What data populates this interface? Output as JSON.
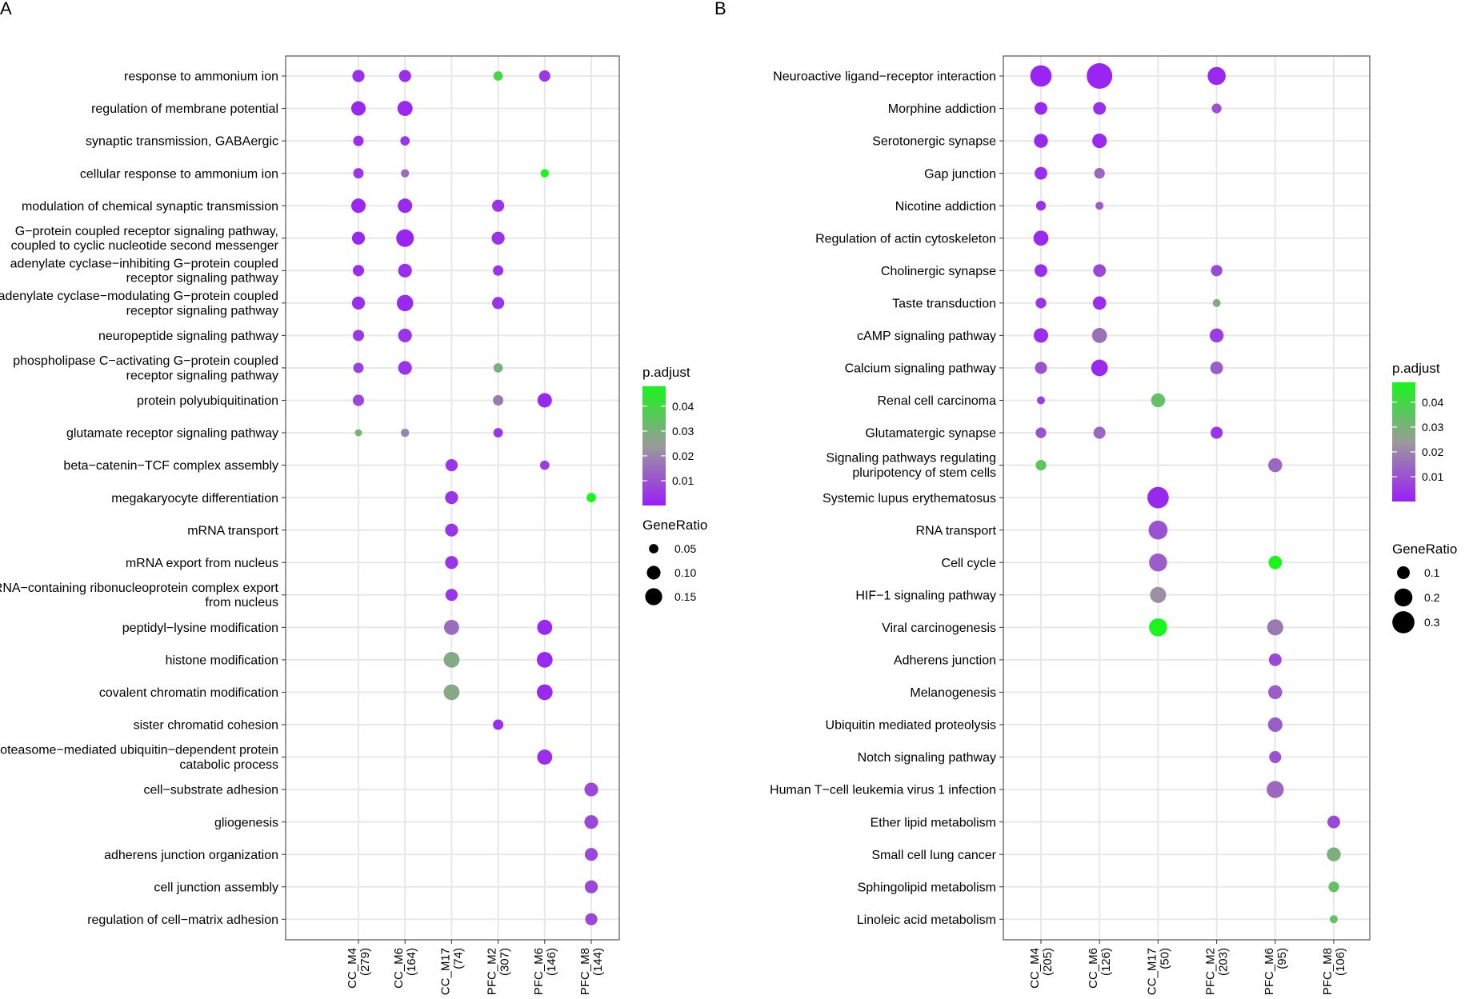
{
  "chart_data": [
    {
      "type": "scatter",
      "panel": "A",
      "xlabel": "",
      "ylabel": "",
      "modules": [
        {
          "name": "CC_M4",
          "count": "(279)"
        },
        {
          "name": "CC_M6",
          "count": "(164)"
        },
        {
          "name": "CC_M17",
          "count": "(74)"
        },
        {
          "name": "PFC_M2",
          "count": "(307)"
        },
        {
          "name": "PFC_M6",
          "count": "(146)"
        },
        {
          "name": "PFC_M8",
          "count": "(144)"
        }
      ],
      "terms": [
        [
          "response to ammonium ion"
        ],
        [
          "regulation of membrane potential"
        ],
        [
          "synaptic transmission, GABAergic"
        ],
        [
          "cellular response to ammonium ion"
        ],
        [
          "modulation of chemical synaptic transmission"
        ],
        [
          "G−protein coupled receptor signaling pathway,",
          "coupled to cyclic nucleotide second messenger"
        ],
        [
          "adenylate cyclase−inhibiting G−protein coupled",
          "receptor signaling pathway"
        ],
        [
          "adenylate cyclase−modulating G−protein coupled",
          "receptor signaling pathway"
        ],
        [
          "neuropeptide signaling pathway"
        ],
        [
          "phospholipase C−activating G−protein coupled",
          "receptor signaling pathway"
        ],
        [
          "protein polyubiquitination"
        ],
        [
          "glutamate receptor signaling pathway"
        ],
        [
          "beta−catenin−TCF complex assembly"
        ],
        [
          "megakaryocyte differentiation"
        ],
        [
          "mRNA transport"
        ],
        [
          "mRNA export from nucleus"
        ],
        [
          "mRNA−containing ribonucleoprotein complex export",
          "from nucleus"
        ],
        [
          "peptidyl−lysine modification"
        ],
        [
          "histone modification"
        ],
        [
          "covalent chromatin modification"
        ],
        [
          "sister chromatid cohesion"
        ],
        [
          "proteasome−mediated ubiquitin−dependent protein",
          "catabolic process"
        ],
        [
          "cell−substrate adhesion"
        ],
        [
          "gliogenesis"
        ],
        [
          "adherens junction organization"
        ],
        [
          "cell junction assembly"
        ],
        [
          "regulation of cell−matrix adhesion"
        ]
      ],
      "points": [
        {
          "term": 0,
          "module": 0,
          "gene_ratio": 0.08,
          "p_adjust": 0.003
        },
        {
          "term": 0,
          "module": 1,
          "gene_ratio": 0.08,
          "p_adjust": 0.003
        },
        {
          "term": 0,
          "module": 3,
          "gene_ratio": 0.05,
          "p_adjust": 0.04
        },
        {
          "term": 0,
          "module": 4,
          "gene_ratio": 0.07,
          "p_adjust": 0.005
        },
        {
          "term": 1,
          "module": 0,
          "gene_ratio": 0.11,
          "p_adjust": 0.002
        },
        {
          "term": 1,
          "module": 1,
          "gene_ratio": 0.12,
          "p_adjust": 0.002
        },
        {
          "term": 2,
          "module": 0,
          "gene_ratio": 0.06,
          "p_adjust": 0.003
        },
        {
          "term": 2,
          "module": 1,
          "gene_ratio": 0.05,
          "p_adjust": 0.005
        },
        {
          "term": 3,
          "module": 0,
          "gene_ratio": 0.06,
          "p_adjust": 0.005
        },
        {
          "term": 3,
          "module": 1,
          "gene_ratio": 0.04,
          "p_adjust": 0.015
        },
        {
          "term": 3,
          "module": 4,
          "gene_ratio": 0.04,
          "p_adjust": 0.048
        },
        {
          "term": 4,
          "module": 0,
          "gene_ratio": 0.11,
          "p_adjust": 0.002
        },
        {
          "term": 4,
          "module": 1,
          "gene_ratio": 0.11,
          "p_adjust": 0.002
        },
        {
          "term": 4,
          "module": 3,
          "gene_ratio": 0.08,
          "p_adjust": 0.004
        },
        {
          "term": 5,
          "module": 0,
          "gene_ratio": 0.09,
          "p_adjust": 0.002
        },
        {
          "term": 5,
          "module": 1,
          "gene_ratio": 0.16,
          "p_adjust": 0.001
        },
        {
          "term": 5,
          "module": 3,
          "gene_ratio": 0.09,
          "p_adjust": 0.004
        },
        {
          "term": 6,
          "module": 0,
          "gene_ratio": 0.07,
          "p_adjust": 0.003
        },
        {
          "term": 6,
          "module": 1,
          "gene_ratio": 0.1,
          "p_adjust": 0.003
        },
        {
          "term": 6,
          "module": 3,
          "gene_ratio": 0.06,
          "p_adjust": 0.004
        },
        {
          "term": 7,
          "module": 0,
          "gene_ratio": 0.09,
          "p_adjust": 0.003
        },
        {
          "term": 7,
          "module": 1,
          "gene_ratio": 0.14,
          "p_adjust": 0.002
        },
        {
          "term": 7,
          "module": 3,
          "gene_ratio": 0.08,
          "p_adjust": 0.004
        },
        {
          "term": 8,
          "module": 0,
          "gene_ratio": 0.07,
          "p_adjust": 0.005
        },
        {
          "term": 8,
          "module": 1,
          "gene_ratio": 0.1,
          "p_adjust": 0.004
        },
        {
          "term": 9,
          "module": 0,
          "gene_ratio": 0.06,
          "p_adjust": 0.007
        },
        {
          "term": 9,
          "module": 1,
          "gene_ratio": 0.1,
          "p_adjust": 0.004
        },
        {
          "term": 9,
          "module": 3,
          "gene_ratio": 0.05,
          "p_adjust": 0.03
        },
        {
          "term": 10,
          "module": 0,
          "gene_ratio": 0.07,
          "p_adjust": 0.008
        },
        {
          "term": 10,
          "module": 3,
          "gene_ratio": 0.06,
          "p_adjust": 0.018
        },
        {
          "term": 10,
          "module": 4,
          "gene_ratio": 0.11,
          "p_adjust": 0.002
        },
        {
          "term": 11,
          "module": 0,
          "gene_ratio": 0.03,
          "p_adjust": 0.032
        },
        {
          "term": 11,
          "module": 1,
          "gene_ratio": 0.04,
          "p_adjust": 0.02
        },
        {
          "term": 11,
          "module": 3,
          "gene_ratio": 0.05,
          "p_adjust": 0.004
        },
        {
          "term": 12,
          "module": 2,
          "gene_ratio": 0.08,
          "p_adjust": 0.004
        },
        {
          "term": 12,
          "module": 4,
          "gene_ratio": 0.05,
          "p_adjust": 0.006
        },
        {
          "term": 13,
          "module": 2,
          "gene_ratio": 0.09,
          "p_adjust": 0.004
        },
        {
          "term": 13,
          "module": 5,
          "gene_ratio": 0.05,
          "p_adjust": 0.048
        },
        {
          "term": 14,
          "module": 2,
          "gene_ratio": 0.09,
          "p_adjust": 0.004
        },
        {
          "term": 15,
          "module": 2,
          "gene_ratio": 0.09,
          "p_adjust": 0.004
        },
        {
          "term": 16,
          "module": 2,
          "gene_ratio": 0.08,
          "p_adjust": 0.004
        },
        {
          "term": 17,
          "module": 2,
          "gene_ratio": 0.12,
          "p_adjust": 0.015
        },
        {
          "term": 17,
          "module": 4,
          "gene_ratio": 0.12,
          "p_adjust": 0.002
        },
        {
          "term": 18,
          "module": 2,
          "gene_ratio": 0.13,
          "p_adjust": 0.028
        },
        {
          "term": 18,
          "module": 4,
          "gene_ratio": 0.13,
          "p_adjust": 0.002
        },
        {
          "term": 19,
          "module": 2,
          "gene_ratio": 0.13,
          "p_adjust": 0.028
        },
        {
          "term": 19,
          "module": 4,
          "gene_ratio": 0.13,
          "p_adjust": 0.002
        },
        {
          "term": 20,
          "module": 3,
          "gene_ratio": 0.06,
          "p_adjust": 0.003
        },
        {
          "term": 21,
          "module": 4,
          "gene_ratio": 0.12,
          "p_adjust": 0.003
        },
        {
          "term": 22,
          "module": 5,
          "gene_ratio": 0.1,
          "p_adjust": 0.008
        },
        {
          "term": 23,
          "module": 5,
          "gene_ratio": 0.1,
          "p_adjust": 0.008
        },
        {
          "term": 24,
          "module": 5,
          "gene_ratio": 0.09,
          "p_adjust": 0.008
        },
        {
          "term": 25,
          "module": 5,
          "gene_ratio": 0.09,
          "p_adjust": 0.008
        },
        {
          "term": 26,
          "module": 5,
          "gene_ratio": 0.08,
          "p_adjust": 0.008
        }
      ],
      "size_scale": {
        "min": 0.02,
        "max": 0.16
      },
      "legend": {
        "color_title": "p.adjust",
        "color_range": [
          0,
          0.048
        ],
        "color_ticks": [
          0.01,
          0.02,
          0.03,
          0.04
        ],
        "color_tick_labels": [
          "0.01",
          "0.02",
          "0.03",
          "0.04"
        ],
        "size_title": "GeneRatio",
        "size_ticks": [
          0.05,
          0.1,
          0.15
        ],
        "size_tick_labels": [
          "0.05",
          "0.10",
          "0.15"
        ]
      }
    },
    {
      "type": "scatter",
      "panel": "B",
      "xlabel": "",
      "ylabel": "",
      "modules": [
        {
          "name": "CC_M4",
          "count": "(205)"
        },
        {
          "name": "CC_M6",
          "count": "(126)"
        },
        {
          "name": "CC_M17",
          "count": "(50)"
        },
        {
          "name": "PFC_M2",
          "count": "(203)"
        },
        {
          "name": "PFC_M6",
          "count": "(95)"
        },
        {
          "name": "PFC_M8",
          "count": "(106)"
        }
      ],
      "terms": [
        [
          "Neuroactive ligand−receptor interaction"
        ],
        [
          "Morphine addiction"
        ],
        [
          "Serotonergic synapse"
        ],
        [
          "Gap junction"
        ],
        [
          "Nicotine addiction"
        ],
        [
          "Regulation of actin cytoskeleton"
        ],
        [
          "Cholinergic synapse"
        ],
        [
          "Taste transduction"
        ],
        [
          "cAMP signaling pathway"
        ],
        [
          "Calcium signaling pathway"
        ],
        [
          "Renal cell carcinoma"
        ],
        [
          "Glutamatergic synapse"
        ],
        [
          "Signaling pathways regulating",
          "pluripotency of stem cells"
        ],
        [
          "Systemic lupus erythematosus"
        ],
        [
          "RNA transport"
        ],
        [
          "Cell cycle"
        ],
        [
          "HIF−1 signaling pathway"
        ],
        [
          "Viral carcinogenesis"
        ],
        [
          "Adherens junction"
        ],
        [
          "Melanogenesis"
        ],
        [
          "Ubiquitin mediated proteolysis"
        ],
        [
          "Notch signaling pathway"
        ],
        [
          "Human T−cell leukemia virus 1 infection"
        ],
        [
          "Ether lipid metabolism"
        ],
        [
          "Small cell lung cancer"
        ],
        [
          "Sphingolipid metabolism"
        ],
        [
          "Linoleic acid metabolism"
        ]
      ],
      "points": [
        {
          "term": 0,
          "module": 0,
          "gene_ratio": 0.28,
          "p_adjust": 0.001
        },
        {
          "term": 0,
          "module": 1,
          "gene_ratio": 0.4,
          "p_adjust": 0.001
        },
        {
          "term": 0,
          "module": 3,
          "gene_ratio": 0.2,
          "p_adjust": 0.002
        },
        {
          "term": 1,
          "module": 0,
          "gene_ratio": 0.1,
          "p_adjust": 0.002
        },
        {
          "term": 1,
          "module": 1,
          "gene_ratio": 0.1,
          "p_adjust": 0.003
        },
        {
          "term": 1,
          "module": 3,
          "gene_ratio": 0.06,
          "p_adjust": 0.01
        },
        {
          "term": 2,
          "module": 0,
          "gene_ratio": 0.12,
          "p_adjust": 0.002
        },
        {
          "term": 2,
          "module": 1,
          "gene_ratio": 0.13,
          "p_adjust": 0.002
        },
        {
          "term": 3,
          "module": 0,
          "gene_ratio": 0.1,
          "p_adjust": 0.003
        },
        {
          "term": 3,
          "module": 1,
          "gene_ratio": 0.07,
          "p_adjust": 0.014
        },
        {
          "term": 4,
          "module": 0,
          "gene_ratio": 0.06,
          "p_adjust": 0.004
        },
        {
          "term": 4,
          "module": 1,
          "gene_ratio": 0.04,
          "p_adjust": 0.012
        },
        {
          "term": 5,
          "module": 0,
          "gene_ratio": 0.14,
          "p_adjust": 0.002
        },
        {
          "term": 6,
          "module": 0,
          "gene_ratio": 0.1,
          "p_adjust": 0.003
        },
        {
          "term": 6,
          "module": 1,
          "gene_ratio": 0.1,
          "p_adjust": 0.008
        },
        {
          "term": 6,
          "module": 3,
          "gene_ratio": 0.08,
          "p_adjust": 0.008
        },
        {
          "term": 7,
          "module": 0,
          "gene_ratio": 0.07,
          "p_adjust": 0.004
        },
        {
          "term": 7,
          "module": 1,
          "gene_ratio": 0.11,
          "p_adjust": 0.003
        },
        {
          "term": 7,
          "module": 3,
          "gene_ratio": 0.04,
          "p_adjust": 0.028
        },
        {
          "term": 8,
          "module": 0,
          "gene_ratio": 0.13,
          "p_adjust": 0.003
        },
        {
          "term": 8,
          "module": 1,
          "gene_ratio": 0.14,
          "p_adjust": 0.016
        },
        {
          "term": 8,
          "module": 3,
          "gene_ratio": 0.12,
          "p_adjust": 0.006
        },
        {
          "term": 9,
          "module": 0,
          "gene_ratio": 0.09,
          "p_adjust": 0.01
        },
        {
          "term": 9,
          "module": 1,
          "gene_ratio": 0.17,
          "p_adjust": 0.002
        },
        {
          "term": 9,
          "module": 3,
          "gene_ratio": 0.1,
          "p_adjust": 0.012
        },
        {
          "term": 10,
          "module": 0,
          "gene_ratio": 0.04,
          "p_adjust": 0.006
        },
        {
          "term": 10,
          "module": 2,
          "gene_ratio": 0.12,
          "p_adjust": 0.034
        },
        {
          "term": 11,
          "module": 0,
          "gene_ratio": 0.07,
          "p_adjust": 0.01
        },
        {
          "term": 11,
          "module": 1,
          "gene_ratio": 0.09,
          "p_adjust": 0.014
        },
        {
          "term": 11,
          "module": 3,
          "gene_ratio": 0.09,
          "p_adjust": 0.004
        },
        {
          "term": 12,
          "module": 0,
          "gene_ratio": 0.07,
          "p_adjust": 0.036
        },
        {
          "term": 12,
          "module": 4,
          "gene_ratio": 0.12,
          "p_adjust": 0.014
        },
        {
          "term": 13,
          "module": 2,
          "gene_ratio": 0.28,
          "p_adjust": 0.002
        },
        {
          "term": 14,
          "module": 2,
          "gene_ratio": 0.22,
          "p_adjust": 0.01
        },
        {
          "term": 14,
          "module": 4,
          "gene_ratio": 0.0,
          "p_adjust": 0.0
        },
        {
          "term": 15,
          "module": 2,
          "gene_ratio": 0.2,
          "p_adjust": 0.012
        },
        {
          "term": 15,
          "module": 4,
          "gene_ratio": 0.11,
          "p_adjust": 0.048
        },
        {
          "term": 16,
          "module": 2,
          "gene_ratio": 0.16,
          "p_adjust": 0.022
        },
        {
          "term": 17,
          "module": 2,
          "gene_ratio": 0.2,
          "p_adjust": 0.048
        },
        {
          "term": 17,
          "module": 4,
          "gene_ratio": 0.16,
          "p_adjust": 0.018
        },
        {
          "term": 18,
          "module": 4,
          "gene_ratio": 0.1,
          "p_adjust": 0.008
        },
        {
          "term": 19,
          "module": 4,
          "gene_ratio": 0.12,
          "p_adjust": 0.012
        },
        {
          "term": 20,
          "module": 4,
          "gene_ratio": 0.13,
          "p_adjust": 0.012
        },
        {
          "term": 21,
          "module": 4,
          "gene_ratio": 0.09,
          "p_adjust": 0.01
        },
        {
          "term": 22,
          "module": 4,
          "gene_ratio": 0.18,
          "p_adjust": 0.014
        },
        {
          "term": 23,
          "module": 5,
          "gene_ratio": 0.1,
          "p_adjust": 0.008
        },
        {
          "term": 24,
          "module": 5,
          "gene_ratio": 0.12,
          "p_adjust": 0.03
        },
        {
          "term": 25,
          "module": 5,
          "gene_ratio": 0.07,
          "p_adjust": 0.034
        },
        {
          "term": 26,
          "module": 5,
          "gene_ratio": 0.04,
          "p_adjust": 0.034
        }
      ],
      "size_scale": {
        "min": 0.02,
        "max": 0.4
      },
      "legend": {
        "color_title": "p.adjust",
        "color_range": [
          0,
          0.048
        ],
        "color_ticks": [
          0.01,
          0.02,
          0.03,
          0.04
        ],
        "color_tick_labels": [
          "0.01",
          "0.02",
          "0.03",
          "0.04"
        ],
        "size_title": "GeneRatio",
        "size_ticks": [
          0.1,
          0.2,
          0.3
        ],
        "size_tick_labels": [
          "0.1",
          "0.2",
          "0.3"
        ]
      }
    }
  ],
  "colors": {
    "low": "#9a1ff7",
    "mid": "#9a9a9a",
    "high": "#19f51d",
    "grid": "#e8e8e8",
    "frame": "#555555",
    "text": "#000000"
  }
}
